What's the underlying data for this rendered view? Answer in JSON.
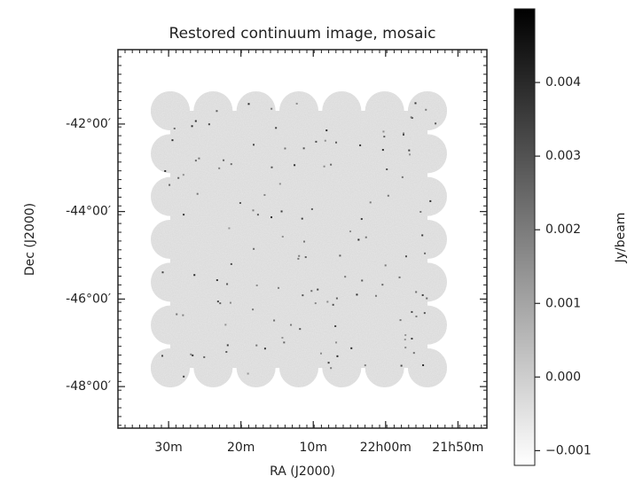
{
  "chart_data": {
    "type": "image",
    "title": "Restored continuum image, mosaic",
    "xlabel": "RA (J2000)",
    "ylabel": "Dec (J2000)",
    "xlim": [
      1357,
      1306
    ],
    "ylim": [
      -48.95,
      -40.3
    ],
    "xticks": [
      {
        "value": 1350,
        "label": "30m"
      },
      {
        "value": 1340,
        "label": "20m"
      },
      {
        "value": 1330,
        "label": "10m"
      },
      {
        "value": 1320,
        "label": "22h00m"
      },
      {
        "value": 1310,
        "label": "21h50m"
      }
    ],
    "yticks": [
      {
        "value": -42,
        "label": "-42°00′"
      },
      {
        "value": -44,
        "label": "-44°00′"
      },
      {
        "value": -46,
        "label": "-46°00′"
      },
      {
        "value": -48,
        "label": "-48°00′"
      }
    ],
    "colorbar": {
      "label": "Jy/beam",
      "colormap": "gray_r",
      "clim": [
        -0.0012,
        0.005
      ],
      "ticks": [
        {
          "value": -0.001,
          "label": "−0.001"
        },
        {
          "value": 0,
          "label": "0.000"
        },
        0.001,
        0.002,
        0.003,
        0.004
      ]
    }
  }
}
